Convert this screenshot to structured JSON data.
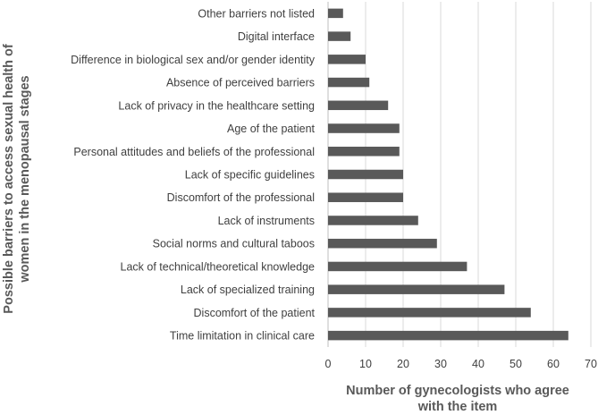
{
  "chart_data": {
    "type": "bar",
    "orientation": "horizontal",
    "categories": [
      "Time limitation in clinical care",
      "Discomfort of the patient",
      "Lack of specialized training",
      "Lack of technical/theoretical knowledge",
      "Social norms and cultural taboos",
      "Lack of instruments",
      "Discomfort of the professional",
      "Lack of specific guidelines",
      "Personal attitudes and beliefs of the professional",
      "Age of the patient",
      "Lack of privacy in the healthcare setting",
      "Absence of perceived barriers",
      "Difference in biological sex and/or gender identity",
      "Digital interface",
      "Other barriers not listed"
    ],
    "values": [
      64,
      54,
      47,
      37,
      29,
      24,
      20,
      20,
      19,
      19,
      16,
      11,
      10,
      6,
      4
    ],
    "xlim": [
      0,
      70
    ],
    "xticks": [
      "0",
      "10",
      "20",
      "30",
      "40",
      "50",
      "60",
      "70"
    ],
    "xlabel_lines": [
      "Number of gynecologists who agree",
      "with the item"
    ],
    "ylabel_lines": [
      "Possible barriers to access sexual health of",
      "women in the menopausal stages"
    ],
    "grid": "vertical",
    "legend": "none",
    "colors": {
      "bar": "#595959",
      "grid": "#d9d9d9",
      "axis": "#bfbfbf",
      "text": "#404040",
      "title": "#595959"
    }
  }
}
